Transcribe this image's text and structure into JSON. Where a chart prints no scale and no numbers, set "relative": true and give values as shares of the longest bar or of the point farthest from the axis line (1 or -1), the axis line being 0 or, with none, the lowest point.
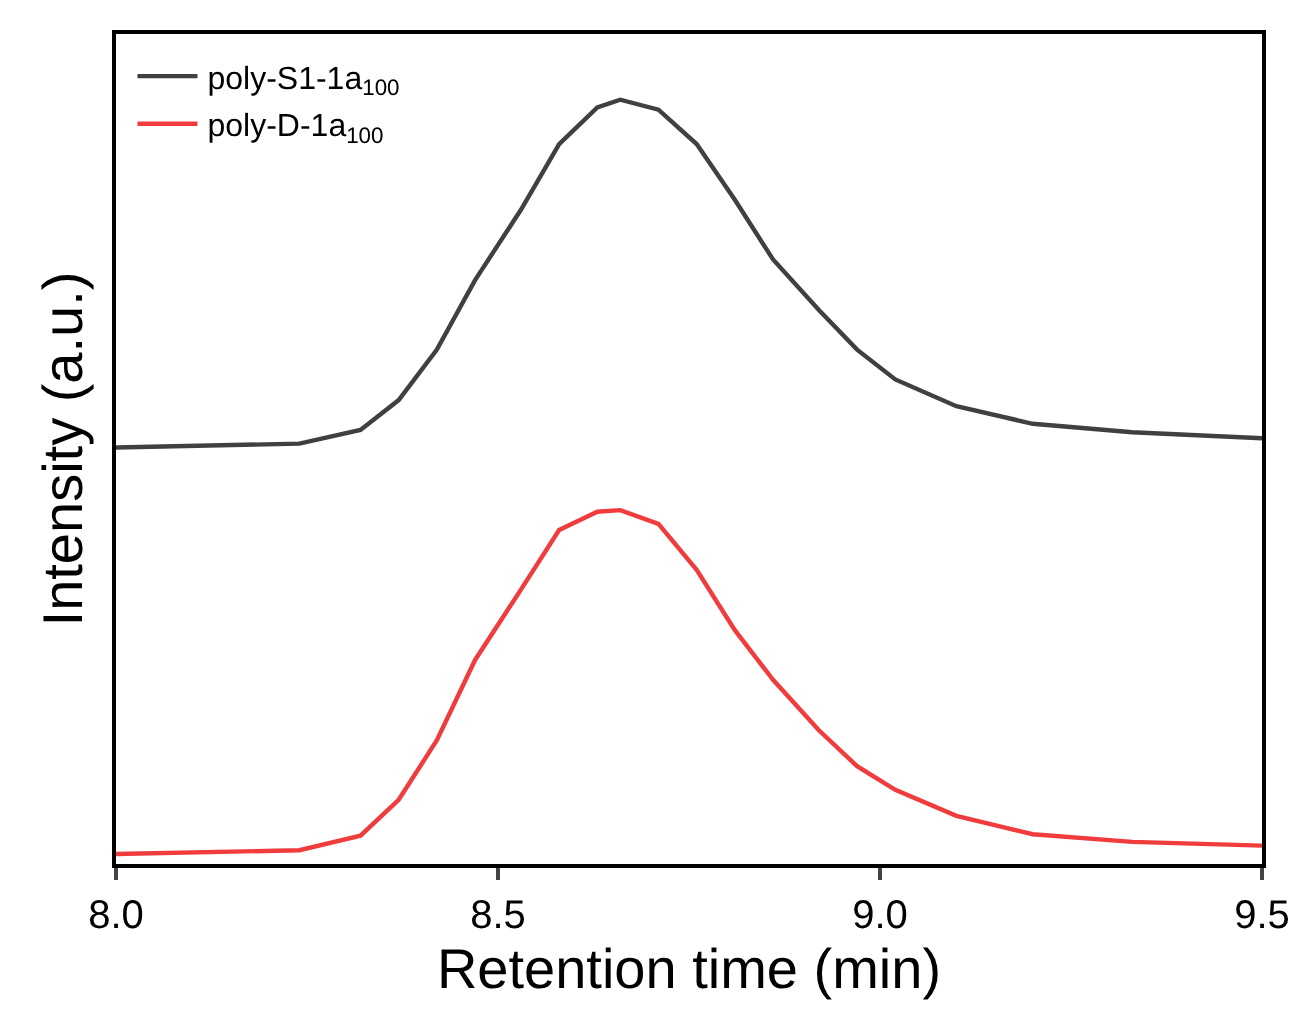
{
  "chart_data": {
    "type": "line",
    "xlabel": "Retention time (min)",
    "ylabel": "Intensity (a.u.)",
    "relative": true,
    "legend": "top left",
    "line_style": "solid",
    "marker": "none",
    "tick_labels": "x",
    "xlim": [
      8.0,
      9.5
    ],
    "xticks": [
      {
        "value": 8.0,
        "label": "8.0"
      },
      {
        "value": 8.5,
        "label": "8.5"
      },
      {
        "value": 9.0,
        "label": "9.0"
      },
      {
        "value": 9.5,
        "label": "9.5"
      }
    ],
    "x": [
      8.0,
      8.24,
      8.32,
      8.37,
      8.42,
      8.47,
      8.53,
      8.58,
      8.63,
      8.66,
      8.71,
      8.76,
      8.81,
      8.86,
      8.92,
      8.97,
      9.02,
      9.1,
      9.2,
      9.33,
      9.5
    ],
    "series": [
      {
        "name": "poly-S1-1a$_{100}$",
        "color": "#404040",
        "values": [
          0.545,
          0.55,
          0.568,
          0.607,
          0.673,
          0.764,
          0.856,
          0.942,
          0.99,
          1,
          0.987,
          0.942,
          0.869,
          0.791,
          0.725,
          0.673,
          0.634,
          0.599,
          0.576,
          0.565,
          0.557
        ]
      },
      {
        "name": "poly-D-1a$_{100}$",
        "color": "#f03c3c",
        "values": [
          0.013,
          0.018,
          0.037,
          0.084,
          0.162,
          0.267,
          0.359,
          0.437,
          0.461,
          0.463,
          0.445,
          0.385,
          0.306,
          0.241,
          0.175,
          0.128,
          0.097,
          0.063,
          0.039,
          0.029,
          0.024
        ]
      }
    ]
  }
}
